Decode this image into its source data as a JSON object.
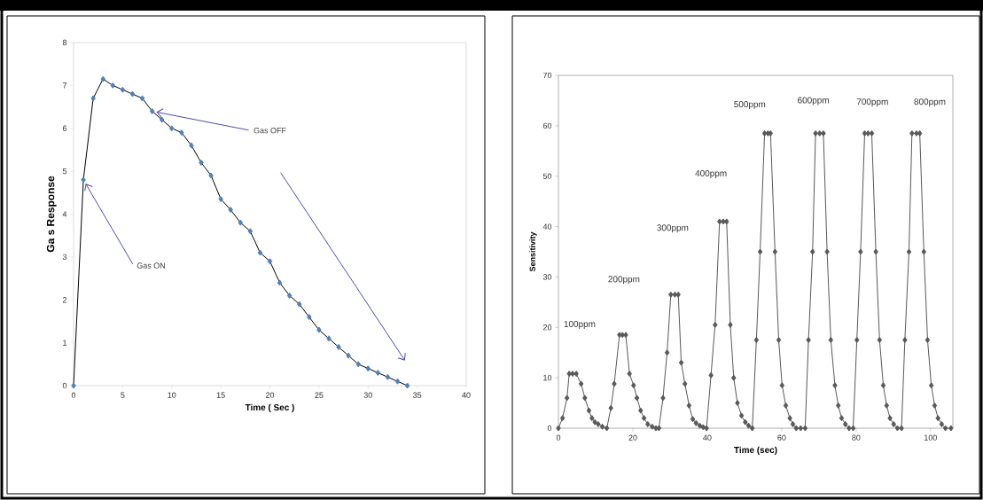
{
  "chart_data": [
    {
      "type": "line",
      "xlabel": "Time ( Sec )",
      "ylabel": "Ga s Response",
      "marker": "diamond",
      "x": [
        0,
        1,
        2,
        3,
        4,
        5,
        6,
        7,
        8,
        9,
        10,
        11,
        12,
        13,
        14,
        15,
        16,
        17,
        18,
        19,
        20,
        21,
        22,
        23,
        24,
        25,
        26,
        27,
        28,
        29,
        30,
        31,
        32,
        33,
        34
      ],
      "series": [
        {
          "color": "#4f81bd",
          "values": [
            0,
            4.8,
            6.7,
            7.15,
            7.0,
            6.9,
            6.8,
            6.7,
            6.4,
            6.2,
            6.0,
            5.9,
            5.6,
            5.2,
            4.9,
            4.35,
            4.1,
            3.8,
            3.6,
            3.1,
            2.9,
            2.4,
            2.1,
            1.9,
            1.6,
            1.3,
            1.1,
            0.9,
            0.7,
            0.5,
            0.4,
            0.3,
            0.2,
            0.1,
            0
          ]
        }
      ],
      "xlim": [
        0,
        40
      ],
      "ylim": [
        0,
        8
      ],
      "xticks": [
        0,
        5,
        10,
        15,
        20,
        25,
        30,
        35,
        40
      ],
      "yticks": [
        0,
        1,
        2,
        3,
        4,
        5,
        6,
        7,
        8
      ],
      "annotations": [
        {
          "text": "Gas ON",
          "x": 1,
          "y": 4.8
        },
        {
          "text": "Gas OFF",
          "x": 8,
          "y": 6.4
        }
      ]
    },
    {
      "type": "line",
      "xlabel": "Time (sec)",
      "ylabel": "Sensitivity",
      "marker": "diamond",
      "x": [
        0,
        1.1,
        2.3,
        2.9,
        3.8,
        4.8,
        6.1,
        7.1,
        8.2,
        9,
        9.8,
        10.7,
        11.8,
        13,
        14.1,
        15,
        16.4,
        17.2,
        18.1,
        19.1,
        20.2,
        21.1,
        22.1,
        23,
        24,
        25.2,
        26.2,
        27,
        28.1,
        29.2,
        30.2,
        31.3,
        32.2,
        33,
        34,
        35.1,
        36.1,
        37,
        38,
        38.9,
        39.8,
        41,
        42.1,
        43.3,
        44.3,
        45.2,
        46.2,
        47.1,
        48.1,
        49.2,
        50.2,
        51.1,
        52.1,
        53.2,
        54.2,
        55.4,
        56.3,
        57,
        58.2,
        59.2,
        60.1,
        61.1,
        62.2,
        63,
        63.9,
        65.1,
        66.3,
        67.2,
        68.3,
        69.1,
        70.2,
        71.2,
        72.2,
        73.2,
        74.3,
        75.2,
        76.1,
        77.1,
        78.1,
        79.2,
        80.2,
        81.2,
        82.3,
        83.2,
        84.2,
        85.3,
        86.3,
        87.3,
        88.2,
        89.1,
        90.1,
        91.1,
        92.2,
        93.1,
        94.2,
        95,
        96.2,
        97.1,
        98.2,
        99.2,
        100.2,
        101.1,
        102,
        103,
        104,
        105.5
      ],
      "series": [
        {
          "color": "#595959",
          "values": [
            0,
            2,
            6,
            10.8,
            10.8,
            10.8,
            8.8,
            6,
            3.5,
            2,
            1.2,
            0.8,
            0.3,
            0,
            4,
            8.8,
            18.5,
            18.5,
            18.5,
            10.8,
            8.5,
            6,
            3.5,
            2,
            0.8,
            0.3,
            0,
            0,
            6,
            15,
            26.5,
            26.5,
            26.5,
            13,
            8.8,
            4.5,
            1.8,
            1,
            0.5,
            0.2,
            0,
            10.5,
            20.5,
            41,
            41,
            41,
            20.5,
            10,
            5,
            2.5,
            1.2,
            0.5,
            0,
            17.5,
            35,
            58.5,
            58.5,
            58.5,
            35,
            17.5,
            8.5,
            4.5,
            2,
            0.8,
            0,
            0,
            0,
            17.5,
            35,
            58.5,
            58.5,
            58.5,
            35,
            17.5,
            8.5,
            4.5,
            2,
            0.8,
            0,
            0,
            17.5,
            35,
            58.5,
            58.5,
            58.5,
            35,
            17.5,
            8.5,
            4.5,
            2,
            0.8,
            0,
            0,
            17.5,
            35,
            58.5,
            58.5,
            58.5,
            35,
            17.5,
            8.5,
            4.5,
            2,
            0.8,
            0,
            0
          ]
        }
      ],
      "xlim": [
        0,
        106
      ],
      "ylim": [
        0,
        70
      ],
      "xticks": [
        0,
        20,
        40,
        60,
        80,
        100
      ],
      "yticks": [
        0,
        10,
        20,
        30,
        40,
        50,
        60,
        70
      ],
      "annotations": [
        "100ppm",
        "200ppm",
        "300ppm",
        "400ppm",
        "500ppm",
        "600ppm",
        "700ppm",
        "800ppm"
      ]
    }
  ]
}
